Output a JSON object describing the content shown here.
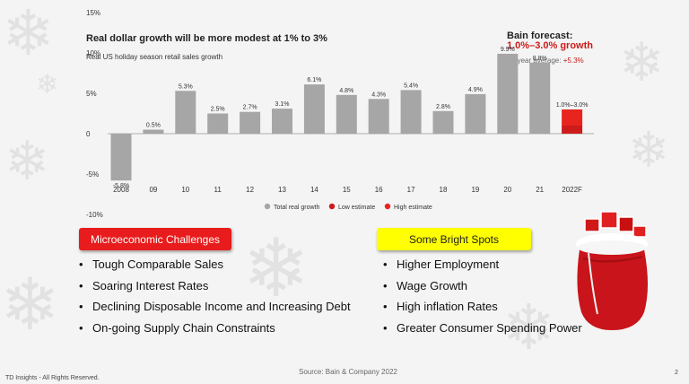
{
  "chart_data": {
    "type": "bar",
    "title": "Real dollar growth will be more modest at 1% to 3%",
    "subtitle": "Real US holiday season retail sales growth",
    "categories": [
      "2008",
      "09",
      "10",
      "11",
      "12",
      "13",
      "14",
      "15",
      "16",
      "17",
      "18",
      "19",
      "20",
      "21",
      "2022F"
    ],
    "values": [
      -5.8,
      0.5,
      5.3,
      2.5,
      2.7,
      3.1,
      6.1,
      4.8,
      4.3,
      5.4,
      2.8,
      4.9,
      9.9,
      8.8,
      null
    ],
    "data_labels": [
      "-5.8%",
      "0.5%",
      "5.3%",
      "2.5%",
      "2.7%",
      "3.1%",
      "6.1%",
      "4.8%",
      "4.3%",
      "5.4%",
      "2.8%",
      "4.9%",
      "9.9%",
      "8.8%",
      "1.0%–3.0%"
    ],
    "forecast": {
      "category": "2022F",
      "low": 1.0,
      "high": 3.0
    },
    "y_ticks": [
      "15%",
      "10%",
      "5%",
      "0",
      "-5%",
      "-10%"
    ],
    "ylim": [
      -10,
      15
    ],
    "grid": false,
    "legend_position": "bottom",
    "legend": [
      {
        "label": "Total real growth",
        "color": "#a6a6a6"
      },
      {
        "label": "Low estimate",
        "color": "#cc1b1b"
      },
      {
        "label": "High estimate",
        "color": "#e8241f"
      }
    ]
  },
  "forecast_box": {
    "label": "Bain forecast:",
    "range": "1.0%–3.0% growth",
    "avg_label": "10-year average:",
    "avg_value": "+5.3%"
  },
  "challenges": {
    "title": "Microeconomic  Challenges",
    "items": [
      "Tough Comparable Sales",
      "Soaring Interest Rates",
      "Declining Disposable Income and Increasing Debt",
      "On-going Supply Chain Constraints"
    ]
  },
  "bright": {
    "title": "Some Bright Spots",
    "items": [
      "Higher Employment",
      "Wage Growth",
      "High inflation Rates",
      "Greater Consumer Spending Power"
    ]
  },
  "source": "Source: Bain & Company 2022",
  "footer": "TD Insights - All Rights Reserved.",
  "page_number": "2",
  "colors": {
    "bar": "#a6a6a6",
    "accent_red": "#e81c1c",
    "pill_yellow": "#ffff00"
  }
}
